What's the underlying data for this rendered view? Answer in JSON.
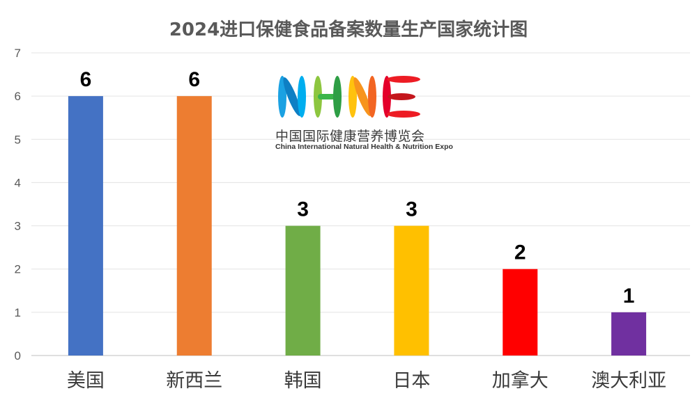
{
  "chart_data": {
    "type": "bar",
    "title": "2024进口保健食品备案数量生产国家统计图",
    "xlabel": "",
    "ylabel": "",
    "categories": [
      "美国",
      "新西兰",
      "韩国",
      "日本",
      "加拿大",
      "澳大利亚"
    ],
    "values": [
      6,
      6,
      3,
      3,
      2,
      1
    ],
    "colors": [
      "#4472C4",
      "#ED7D31",
      "#70AD47",
      "#FFC000",
      "#FF0000",
      "#7030A0"
    ],
    "ylim": [
      0,
      7
    ],
    "yticks": [
      "0",
      "1",
      "2",
      "3",
      "4",
      "5",
      "6",
      "7"
    ],
    "grid": true,
    "legend": "none",
    "data_labels": true
  },
  "logo": {
    "mark_text": "NHNE",
    "name_cn": "中国国际健康营养博览会",
    "name_en": "China International Natural Health & Nutrition Expo"
  }
}
